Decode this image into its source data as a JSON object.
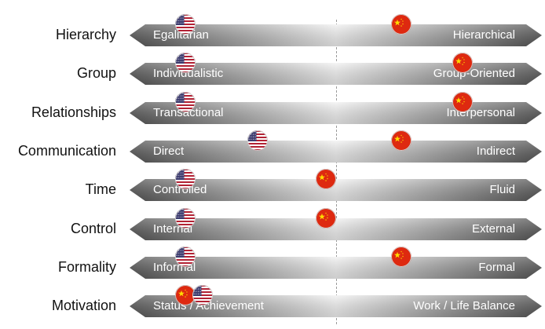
{
  "rows": [
    {
      "dimension": "Hierarchy",
      "left_pole": "Egalitarian",
      "right_pole": "Hierarchical",
      "usa_position": 0.09,
      "china_position": 0.72
    },
    {
      "dimension": "Group",
      "left_pole": "Individualistic",
      "right_pole": "Group-Oriented",
      "usa_position": 0.09,
      "china_position": 0.9
    },
    {
      "dimension": "Relationships",
      "left_pole": "Transactional",
      "right_pole": "Interpersonal",
      "usa_position": 0.09,
      "china_position": 0.9
    },
    {
      "dimension": "Communication",
      "left_pole": "Direct",
      "right_pole": "Indirect",
      "usa_position": 0.3,
      "china_position": 0.72
    },
    {
      "dimension": "Time",
      "left_pole": "Controlled",
      "right_pole": "Fluid",
      "usa_position": 0.09,
      "china_position": 0.5
    },
    {
      "dimension": "Control",
      "left_pole": "Internal",
      "right_pole": "External",
      "usa_position": 0.09,
      "china_position": 0.5
    },
    {
      "dimension": "Formality",
      "left_pole": "Informal",
      "right_pole": "Formal",
      "usa_position": 0.09,
      "china_position": 0.72
    },
    {
      "dimension": "Motivation",
      "left_pole": "Status / Achievement",
      "right_pole": "Work / Life Balance",
      "usa_position": 0.14,
      "china_position": 0.09
    }
  ],
  "flags": {
    "usa": "us-flag-icon",
    "china": "china-flag-icon"
  },
  "colors": {
    "arrow_dark": "#555555",
    "arrow_light": "#f2f2f2",
    "china_red": "#de2910",
    "china_yellow": "#ffde00",
    "us_red": "#b22234",
    "us_blue": "#3c3b6e"
  }
}
